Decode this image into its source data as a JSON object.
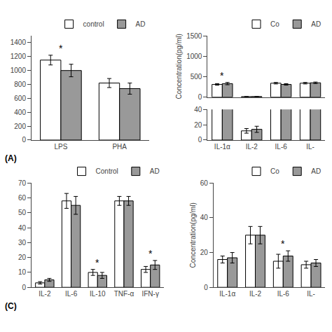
{
  "chart_data": [
    {
      "type": "bar",
      "title": "(A)",
      "categories": [
        "LPS",
        "PHA"
      ],
      "series": [
        {
          "name": "control",
          "color": "#ffffff",
          "values": [
            1150,
            820
          ],
          "errors": [
            70,
            65
          ]
        },
        {
          "name": "AD",
          "color": "#999999",
          "values": [
            1000,
            740
          ],
          "errors": [
            90,
            80
          ]
        }
      ],
      "ylim": [
        0,
        1500
      ],
      "yticks": [
        0,
        200,
        400,
        600,
        800,
        1000,
        1200,
        1400
      ],
      "grid": false,
      "legend": "upper right",
      "annotations": [
        {
          "text": "*",
          "x": "LPS"
        }
      ]
    },
    {
      "type": "bar",
      "categories": [
        "IL-1α",
        "IL-2",
        "IL-6",
        "IL-"
      ],
      "series": [
        {
          "name": "Co",
          "color": "#ffffff",
          "values": [
            310,
            12,
            340,
            340
          ],
          "errors": [
            20,
            3,
            18,
            18
          ]
        },
        {
          "name": "AD",
          "color": "#999999",
          "values": [
            330,
            14,
            310,
            350
          ],
          "errors": [
            28,
            4,
            18,
            18
          ]
        }
      ],
      "ylabel": "Concentration(pg/ml)",
      "ylim": [
        0,
        1500
      ],
      "yticks": [
        0,
        500,
        1000,
        1500
      ],
      "y2lim": [
        0,
        40
      ],
      "y2ticks": [
        0,
        20,
        40
      ],
      "grid": false,
      "legend": "upper right",
      "annotations": [
        {
          "text": "*",
          "x": "IL-1α"
        }
      ]
    },
    {
      "type": "bar",
      "title": "(C)",
      "categories": [
        "IL-2",
        "IL-6",
        "IL-10",
        "TNF-α",
        "IFN-γ"
      ],
      "series": [
        {
          "name": "Control",
          "color": "#ffffff",
          "values": [
            3,
            58,
            10,
            58,
            12
          ],
          "errors": [
            0.8,
            5,
            2,
            3,
            2
          ]
        },
        {
          "name": "AD",
          "color": "#999999",
          "values": [
            5,
            55,
            8,
            58,
            15
          ],
          "errors": [
            1,
            6,
            2,
            3,
            3
          ]
        }
      ],
      "ylim": [
        0,
        70
      ],
      "yticks": [
        0,
        10,
        20,
        30,
        40,
        50,
        60,
        70
      ],
      "grid": false,
      "legend": "upper right",
      "annotations": [
        {
          "text": "*",
          "x": "IL-10"
        },
        {
          "text": "*",
          "x": "IFN-γ"
        }
      ]
    },
    {
      "type": "bar",
      "categories": [
        "IL-1α",
        "IL-2",
        "IL-6",
        "IL-"
      ],
      "series": [
        {
          "name": "Co",
          "color": "#ffffff",
          "values": [
            16,
            30,
            15,
            13
          ],
          "errors": [
            2,
            5,
            4,
            2
          ]
        },
        {
          "name": "AD",
          "color": "#999999",
          "values": [
            17,
            30,
            18,
            14
          ],
          "errors": [
            3,
            5,
            3,
            2
          ]
        }
      ],
      "ylabel": "Concentration(pg/ml)",
      "ylim": [
        0,
        60
      ],
      "yticks": [
        0,
        20,
        40,
        60
      ],
      "grid": false,
      "legend": "upper right",
      "annotations": [
        {
          "text": "*",
          "x": "IL-6"
        }
      ]
    }
  ]
}
